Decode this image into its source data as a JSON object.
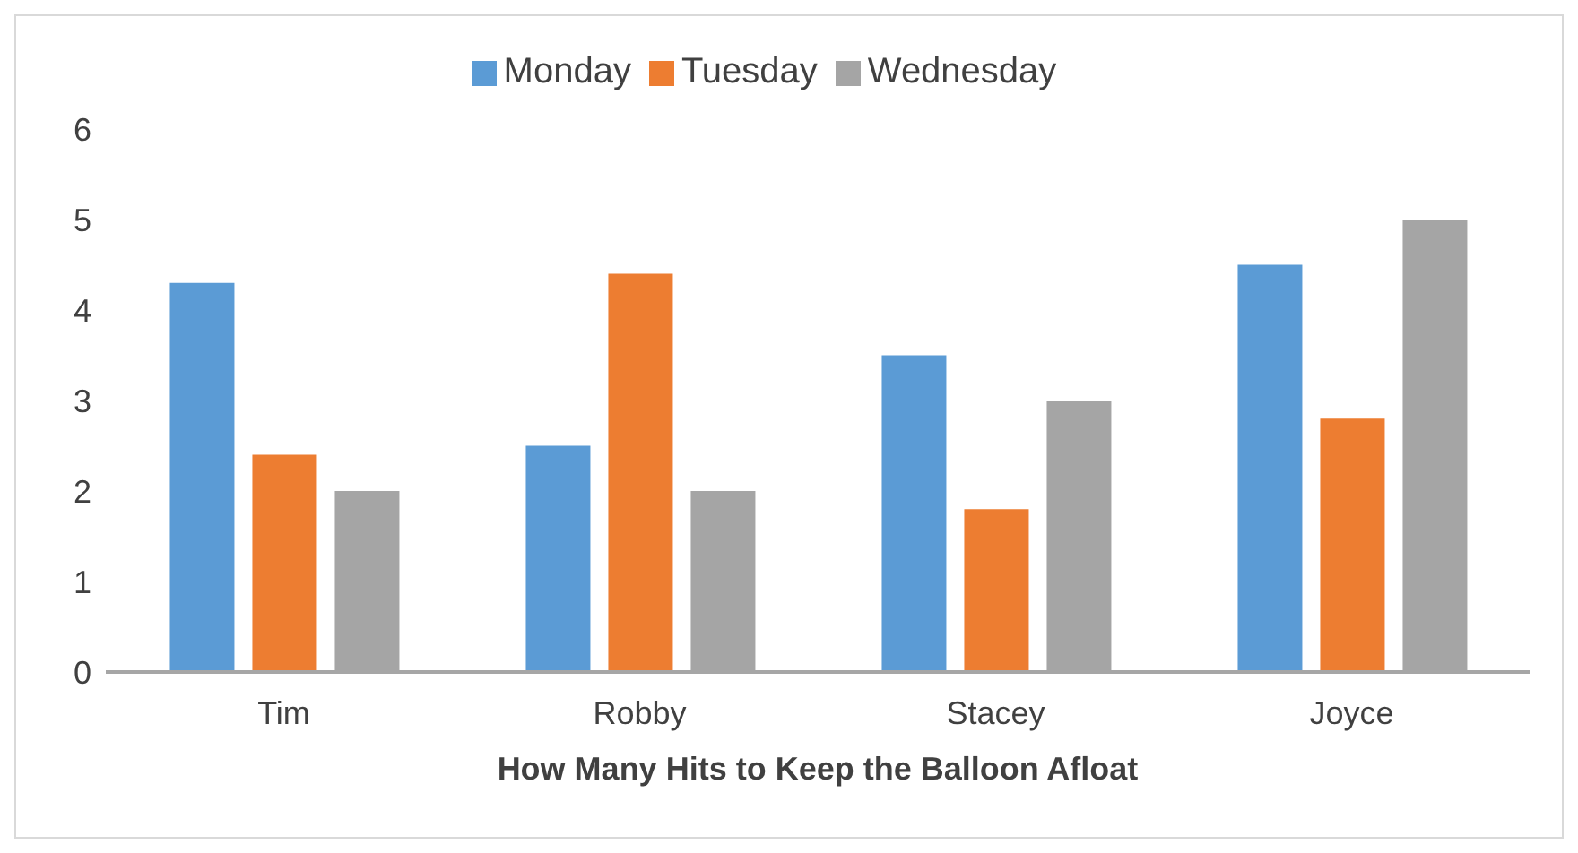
{
  "chart_data": {
    "type": "bar",
    "xlabel": "How Many Hits to Keep the Balloon Afloat",
    "categories": [
      "Tim",
      "Robby",
      "Stacey",
      "Joyce"
    ],
    "series": [
      {
        "name": "Monday",
        "color": "#5b9bd5",
        "values": [
          4.3,
          2.5,
          3.5,
          4.5
        ]
      },
      {
        "name": "Tuesday",
        "color": "#ed7d31",
        "values": [
          2.4,
          4.4,
          1.8,
          2.8
        ]
      },
      {
        "name": "Wednesday",
        "color": "#a5a5a5",
        "values": [
          2,
          2,
          3,
          5
        ]
      }
    ],
    "ylim": [
      0,
      6
    ],
    "yticks": [
      0,
      1,
      2,
      3,
      4,
      5,
      6
    ],
    "grid": false,
    "legend": "top"
  }
}
